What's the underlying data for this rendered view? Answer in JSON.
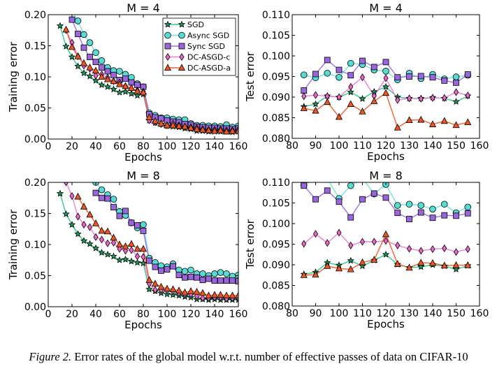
{
  "caption": {
    "label": "Figure 2.",
    "text": "Error rates of the global model w.r.t. number of effective passes of data on CIFAR-10"
  },
  "styles": {
    "SGD": {
      "line": "#33cc88",
      "fill": "#1f9a5a",
      "marker": "star"
    },
    "Async SGD": {
      "line": "#6ee6de",
      "fill": "#55dcd4",
      "marker": "circle"
    },
    "Sync SGD": {
      "line": "#a070ee",
      "fill": "#9966dd",
      "marker": "square"
    },
    "DC-ASGD-c": {
      "line": "#f080d0",
      "fill": "#ee66cc",
      "marker": "diamond"
    },
    "DC-ASGD-a": {
      "line": "#f06030",
      "fill": "#ee5522",
      "marker": "triangle"
    }
  },
  "chart_data": [
    {
      "type": "line",
      "title": "M = 4",
      "xlabel": "Epochs",
      "ylabel": "Training error",
      "xlim": [
        0,
        160
      ],
      "ylim": [
        0.0,
        0.2
      ],
      "xticks": [
        "0",
        "20",
        "40",
        "60",
        "80",
        "100",
        "120",
        "140",
        "160"
      ],
      "yticks": [
        "0.00",
        "0.05",
        "0.10",
        "0.15",
        "0.20"
      ],
      "legend": "top-right",
      "grid": false,
      "x": [
        10,
        15,
        20,
        25,
        30,
        35,
        40,
        45,
        50,
        55,
        60,
        65,
        70,
        75,
        80,
        85,
        90,
        95,
        100,
        105,
        110,
        115,
        120,
        125,
        130,
        135,
        140,
        145,
        150,
        155,
        160
      ],
      "series": [
        {
          "name": "SGD",
          "y": [
            0.182,
            0.149,
            0.132,
            0.117,
            0.106,
            0.101,
            0.094,
            0.087,
            0.084,
            0.08,
            0.075,
            0.076,
            0.073,
            0.07,
            0.072,
            0.03,
            0.026,
            0.024,
            0.021,
            0.02,
            0.019,
            0.017,
            0.016,
            0.013,
            0.013,
            0.012,
            0.012,
            0.012,
            0.012,
            0.011,
            0.012
          ]
        },
        {
          "name": "Async SGD",
          "y": [
            null,
            null,
            0.205,
            0.19,
            0.168,
            0.155,
            0.139,
            0.126,
            0.115,
            0.11,
            0.109,
            0.104,
            0.099,
            0.089,
            0.084,
            0.042,
            0.038,
            0.034,
            0.034,
            0.032,
            0.031,
            0.031,
            0.025,
            0.022,
            0.022,
            0.021,
            0.021,
            0.02,
            0.023,
            0.019,
            0.021
          ]
        },
        {
          "name": "Sync SGD",
          "y": [
            null,
            null,
            0.192,
            0.169,
            0.147,
            0.132,
            0.124,
            0.115,
            0.109,
            0.103,
            0.095,
            0.097,
            0.091,
            0.087,
            0.084,
            0.04,
            0.035,
            0.033,
            0.03,
            0.028,
            0.027,
            0.024,
            0.023,
            0.02,
            0.019,
            0.018,
            0.018,
            0.017,
            0.017,
            0.016,
            0.017
          ]
        },
        {
          "name": "DC-ASGD-c",
          "y": [
            null,
            0.175,
            0.155,
            0.133,
            0.118,
            0.113,
            0.102,
            0.104,
            0.099,
            0.093,
            0.091,
            0.085,
            0.081,
            0.078,
            0.076,
            0.03,
            0.027,
            0.024,
            0.022,
            0.025,
            0.022,
            0.02,
            0.019,
            0.018,
            0.016,
            0.015,
            0.015,
            0.015,
            0.014,
            0.014,
            0.015
          ]
        },
        {
          "name": "DC-ASGD-a",
          "y": [
            null,
            0.176,
            0.148,
            0.133,
            0.122,
            0.115,
            0.11,
            0.1,
            0.096,
            0.093,
            0.088,
            0.085,
            0.082,
            0.077,
            0.075,
            0.035,
            0.029,
            0.025,
            0.022,
            0.022,
            0.021,
            0.02,
            0.018,
            0.016,
            0.015,
            0.014,
            0.013,
            0.014,
            0.012,
            0.013,
            0.013
          ]
        }
      ]
    },
    {
      "type": "line",
      "title": "M = 4",
      "xlabel": "Epochs",
      "ylabel": "Test error",
      "xlim": [
        80,
        160
      ],
      "ylim": [
        0.08,
        0.11
      ],
      "xticks": [
        "80",
        "90",
        "100",
        "110",
        "120",
        "130",
        "140",
        "150",
        "160"
      ],
      "yticks": [
        "0.080",
        "0.085",
        "0.090",
        "0.095",
        "0.100",
        "0.105",
        "0.110"
      ],
      "grid": false,
      "x": [
        85,
        90,
        95,
        100,
        105,
        110,
        115,
        120,
        125,
        130,
        135,
        140,
        145,
        150,
        155
      ],
      "series": [
        {
          "name": "SGD",
          "y": [
            0.0877,
            0.0883,
            0.0903,
            0.09,
            0.0912,
            0.0896,
            0.0913,
            0.0925,
            0.09,
            0.0897,
            0.0897,
            0.0899,
            0.0897,
            0.0889,
            0.0903
          ]
        },
        {
          "name": "Async SGD",
          "y": [
            0.0954,
            0.0947,
            0.0958,
            0.0948,
            0.0982,
            0.0979,
            0.0966,
            0.0963,
            0.0942,
            0.0958,
            0.0945,
            0.0955,
            0.0944,
            0.0949,
            0.0953
          ]
        },
        {
          "name": "Sync SGD",
          "y": [
            0.0916,
            0.0956,
            0.099,
            0.0966,
            0.0953,
            0.0988,
            0.0973,
            0.0985,
            0.0948,
            0.095,
            0.0951,
            0.0948,
            0.094,
            0.0935,
            0.0955
          ]
        },
        {
          "name": "DC-ASGD-c",
          "y": [
            0.0902,
            0.0905,
            0.0902,
            0.09,
            0.0925,
            0.0948,
            0.0903,
            0.0946,
            0.0893,
            0.0897,
            0.0896,
            0.0898,
            0.0898,
            0.0912,
            0.0904
          ]
        },
        {
          "name": "DC-ASGD-a",
          "y": [
            0.0873,
            0.0867,
            0.0888,
            0.0852,
            0.0883,
            0.0865,
            0.089,
            0.091,
            0.0826,
            0.0844,
            0.0845,
            0.0834,
            0.0842,
            0.0832,
            0.0839
          ]
        }
      ]
    },
    {
      "type": "line",
      "title": "M = 8",
      "xlabel": "Epochs",
      "ylabel": "Training error",
      "xlim": [
        0,
        160
      ],
      "ylim": [
        0.0,
        0.2
      ],
      "xticks": [
        "0",
        "20",
        "40",
        "60",
        "80",
        "100",
        "120",
        "140",
        "160"
      ],
      "yticks": [
        "0.00",
        "0.05",
        "0.10",
        "0.15",
        "0.20"
      ],
      "grid": false,
      "x": [
        10,
        15,
        20,
        25,
        30,
        35,
        40,
        45,
        50,
        55,
        60,
        65,
        70,
        75,
        80,
        85,
        90,
        95,
        100,
        105,
        110,
        115,
        120,
        125,
        130,
        135,
        140,
        145,
        150,
        155,
        160
      ],
      "series": [
        {
          "name": "SGD",
          "y": [
            0.182,
            0.149,
            0.132,
            0.117,
            0.106,
            0.101,
            0.094,
            0.087,
            0.084,
            0.081,
            0.075,
            0.076,
            0.073,
            0.071,
            0.07,
            0.028,
            0.025,
            0.022,
            0.02,
            0.019,
            0.018,
            0.016,
            0.015,
            0.012,
            0.012,
            0.011,
            0.012,
            0.011,
            0.011,
            0.011,
            0.011
          ]
        },
        {
          "name": "Async SGD",
          "y": [
            null,
            null,
            null,
            null,
            null,
            null,
            0.2,
            0.188,
            0.18,
            0.173,
            0.153,
            0.147,
            0.135,
            0.127,
            0.132,
            0.078,
            0.071,
            0.066,
            0.064,
            0.069,
            0.059,
            0.057,
            0.059,
            0.053,
            0.053,
            0.05,
            0.053,
            0.055,
            0.053,
            0.049,
            0.051
          ]
        },
        {
          "name": "Sync SGD",
          "y": [
            null,
            null,
            null,
            null,
            null,
            null,
            0.183,
            0.175,
            0.174,
            0.16,
            0.146,
            0.154,
            0.135,
            0.131,
            0.122,
            0.074,
            0.064,
            0.058,
            0.06,
            0.065,
            0.051,
            0.047,
            0.048,
            0.047,
            0.043,
            0.045,
            0.042,
            0.042,
            0.042,
            0.042,
            0.041
          ]
        },
        {
          "name": "DC-ASGD-c",
          "y": [
            null,
            0.2,
            0.178,
            0.145,
            0.132,
            0.128,
            0.112,
            0.108,
            0.102,
            0.103,
            0.093,
            0.09,
            0.091,
            0.081,
            0.08,
            0.037,
            0.027,
            0.027,
            0.026,
            0.025,
            0.022,
            0.02,
            0.02,
            0.017,
            0.014,
            0.014,
            0.015,
            0.015,
            0.013,
            0.014,
            0.014
          ]
        },
        {
          "name": "DC-ASGD-a",
          "y": [
            null,
            null,
            null,
            0.177,
            0.161,
            0.148,
            0.134,
            0.122,
            0.121,
            0.111,
            0.1,
            0.097,
            0.101,
            0.093,
            0.093,
            0.043,
            0.037,
            0.032,
            0.029,
            0.028,
            0.026,
            0.023,
            0.025,
            0.024,
            0.022,
            0.018,
            0.019,
            0.019,
            0.018,
            0.018,
            0.018
          ]
        }
      ]
    },
    {
      "type": "line",
      "title": "M = 8",
      "xlabel": "Epochs",
      "ylabel": "Test error",
      "xlim": [
        80,
        160
      ],
      "ylim": [
        0.08,
        0.11
      ],
      "xticks": [
        "80",
        "90",
        "100",
        "110",
        "120",
        "130",
        "140",
        "150",
        "160"
      ],
      "yticks": [
        "0.080",
        "0.085",
        "0.090",
        "0.095",
        "0.100",
        "0.105",
        "0.110"
      ],
      "grid": false,
      "x": [
        85,
        90,
        95,
        100,
        105,
        110,
        115,
        120,
        125,
        130,
        135,
        140,
        145,
        150,
        155
      ],
      "series": [
        {
          "name": "SGD",
          "y": [
            0.0877,
            0.0882,
            0.0905,
            0.0899,
            0.091,
            0.0897,
            0.0911,
            0.0925,
            0.0901,
            0.0893,
            0.0895,
            0.09,
            0.0897,
            0.0889,
            0.0898
          ]
        },
        {
          "name": "Async SGD",
          "y": [
            0.1093,
            0.111,
            0.111,
            0.1061,
            0.1092,
            0.111,
            0.1072,
            0.1095,
            0.1044,
            0.1047,
            0.1044,
            0.1035,
            0.1047,
            0.1026,
            0.104
          ]
        },
        {
          "name": "Sync SGD",
          "y": [
            0.1092,
            0.1059,
            0.108,
            0.1053,
            0.1015,
            0.1059,
            0.1073,
            0.1063,
            0.1026,
            0.1011,
            0.1027,
            0.1014,
            0.102,
            0.1019,
            0.1025
          ]
        },
        {
          "name": "DC-ASGD-c",
          "y": [
            0.0951,
            0.0975,
            0.0953,
            0.0978,
            0.0947,
            0.0956,
            0.0956,
            0.0958,
            0.0947,
            0.0939,
            0.0934,
            0.0938,
            0.094,
            0.0931,
            0.0938
          ]
        },
        {
          "name": "DC-ASGD-a",
          "y": [
            0.0875,
            0.0876,
            0.0897,
            0.0891,
            0.0889,
            0.0906,
            0.0912,
            0.0974,
            0.0902,
            0.0893,
            0.0905,
            0.0904,
            0.0898,
            0.0899,
            0.0899
          ]
        }
      ]
    }
  ]
}
